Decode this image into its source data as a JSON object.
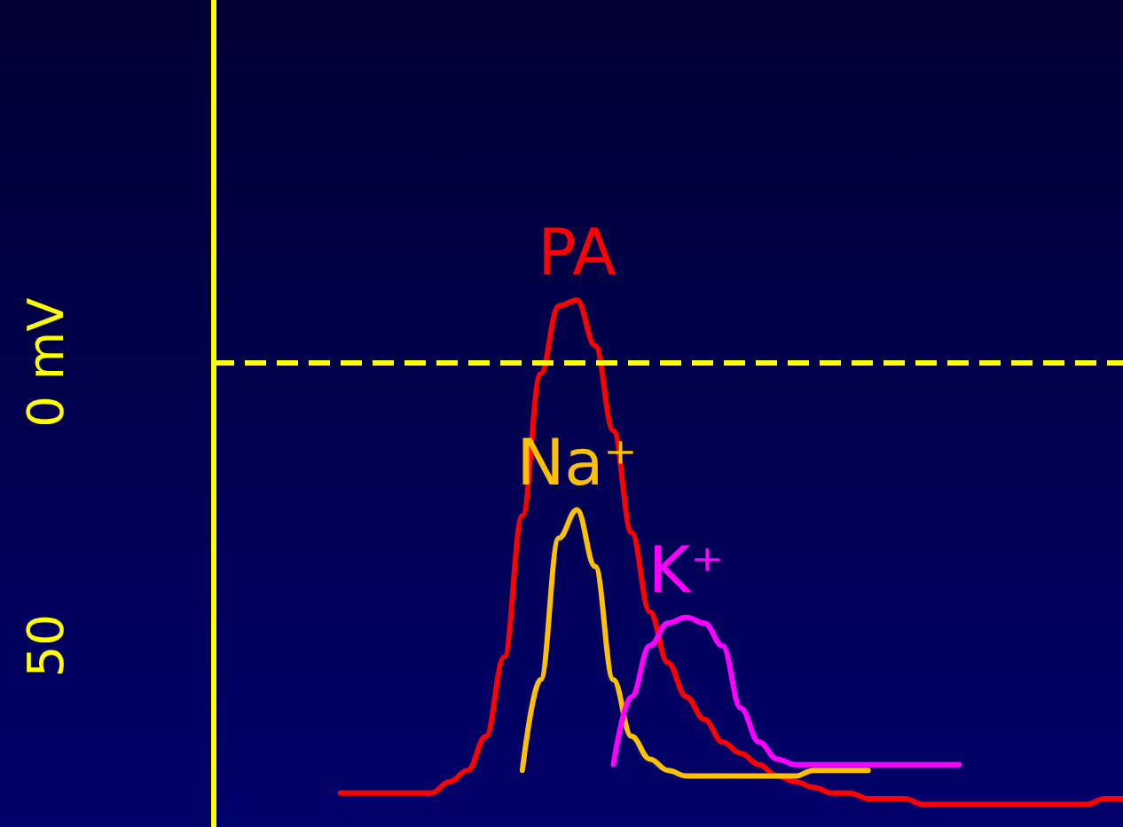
{
  "chart_data": {
    "type": "line",
    "categories": [
      null,
      null,
      null,
      null,
      null,
      null,
      null,
      null,
      null,
      null,
      null,
      null,
      null,
      null,
      null,
      null,
      null,
      null,
      null,
      null,
      null,
      null,
      null,
      null,
      null,
      null,
      null,
      null,
      null,
      null,
      null,
      null,
      null,
      null,
      null,
      null,
      null,
      null,
      null,
      null,
      null,
      null,
      null,
      null,
      null,
      null,
      null,
      null,
      null,
      null,
      null
    ],
    "series": [
      {
        "name": "PA",
        "color": "#ff0000",
        "values": [
          null,
          null,
          null,
          null,
          null,
          null,
          null,
          -76,
          -76,
          -76,
          -76,
          -76,
          -76,
          -74,
          -72,
          -66,
          -52,
          -27,
          -2,
          10,
          11,
          3,
          -12,
          -30,
          -44,
          -53,
          -59,
          -63,
          -67,
          -69,
          -71,
          -73,
          -74,
          -75,
          -76,
          -76,
          -77,
          -77,
          -77,
          -78,
          -78,
          -78,
          -78,
          -78,
          -78,
          -78,
          -78,
          -78,
          -78,
          -77,
          -77
        ]
      },
      {
        "name": "Na⁺",
        "color": "#ffc000",
        "values": [
          null,
          null,
          null,
          null,
          null,
          null,
          null,
          null,
          null,
          null,
          null,
          null,
          null,
          null,
          null,
          null,
          null,
          -72,
          -56,
          -31,
          -26,
          -36,
          -56,
          -66,
          -70,
          -72,
          -73,
          -73,
          -73,
          -73,
          -73,
          -73,
          -73,
          -72,
          -72,
          -72,
          -72,
          null,
          null,
          null,
          null,
          null,
          null,
          null,
          null,
          null,
          null,
          null,
          null,
          null,
          null
        ]
      },
      {
        "name": "K⁺",
        "color": "#ff00ff",
        "values": [
          null,
          null,
          null,
          null,
          null,
          null,
          null,
          null,
          null,
          null,
          null,
          null,
          null,
          null,
          null,
          null,
          null,
          null,
          null,
          null,
          null,
          null,
          -71,
          -59,
          -50,
          -46,
          -45,
          -46,
          -50,
          -61,
          -67,
          -70,
          -71,
          -71,
          -71,
          -71,
          -71,
          -71,
          -71,
          -71,
          -71,
          -71,
          null,
          null,
          null,
          null,
          null,
          null,
          null,
          null,
          null
        ]
      }
    ],
    "ylim": [
      -82,
      64
    ],
    "yticks": [
      {
        "value": 0,
        "label": "0 mV"
      },
      {
        "value": -50,
        "label": "50"
      }
    ],
    "ref_lines": [
      {
        "axis": "y",
        "value": 0,
        "color": "#ffff00",
        "line_style": "dashed"
      }
    ],
    "tick_labels": "y",
    "grid": false,
    "legend": false,
    "marker": "none",
    "line_style": "solid"
  }
}
